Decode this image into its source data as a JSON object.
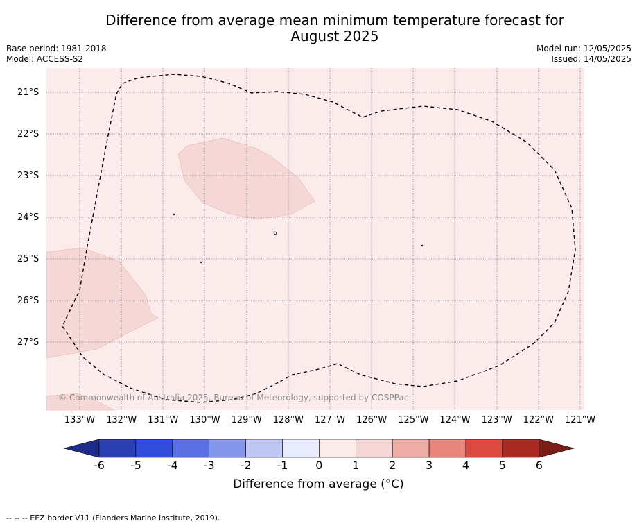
{
  "title_line1": "Difference from average mean minimum temperature forecast for",
  "title_line2": "August 2025",
  "meta_left": {
    "line1": "Base period: 1981-2018",
    "line2": "Model: ACCESS-S2"
  },
  "meta_right": {
    "line1": "Model run: 12/05/2025",
    "line2": "Issued: 14/05/2025"
  },
  "map": {
    "lat_labels": [
      "21°S",
      "22°S",
      "23°S",
      "24°S",
      "25°S",
      "26°S",
      "27°S"
    ],
    "lon_labels": [
      "133°W",
      "132°W",
      "131°W",
      "130°W",
      "129°W",
      "128°W",
      "127°W",
      "126°W",
      "125°W",
      "124°W",
      "123°W",
      "122°W",
      "121°W"
    ],
    "copyright": "© Commonwealth of Australia 2025, Bureau of Meteorology, supported by COSPPac",
    "colors": {
      "anomaly_0_1": "#fbeceb",
      "anomaly_1_2": "#f5d7d5"
    }
  },
  "colorbar": {
    "ticks": [
      "-6",
      "-5",
      "-4",
      "-3",
      "-2",
      "-1",
      "0",
      "1",
      "2",
      "3",
      "4",
      "5",
      "6"
    ],
    "colors": [
      "#1e2c8c",
      "#2a3fb2",
      "#2f4cdb",
      "#5a6fe3",
      "#8696ec",
      "#c0c7f5",
      "#e8ebfb",
      "#fbeceb",
      "#f5d7d5",
      "#eeaca6",
      "#e8857d",
      "#db4a3f",
      "#a82a22",
      "#7a1d17"
    ],
    "label": "Difference from average (°C)"
  },
  "footer": "-- -- -- EEZ border V11 (Flanders Marine Institute, 2019)."
}
